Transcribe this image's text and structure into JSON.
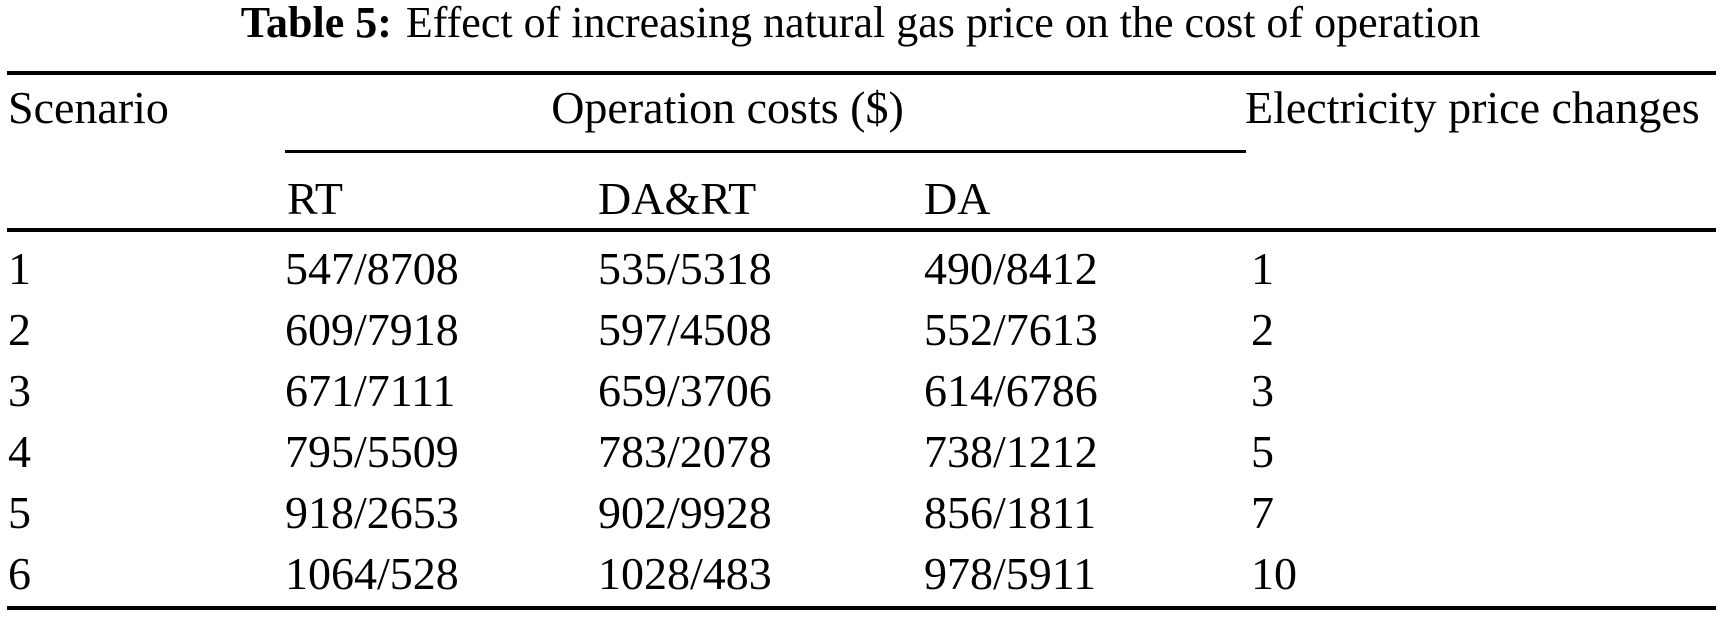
{
  "caption": {
    "label": "Table 5:",
    "text": "Effect of increasing natural gas price on the cost of operation"
  },
  "table": {
    "scenario_header": "Scenario",
    "group_header": "Operation costs ($)",
    "electricity_header": "Electricity price changes",
    "sub_headers": {
      "rt": "RT",
      "dart": "DA&RT",
      "da": "DA"
    },
    "rows": [
      {
        "scenario": "1",
        "rt": "547/8708",
        "dart": "535/5318",
        "da": "490/8412",
        "elec": "1"
      },
      {
        "scenario": "2",
        "rt": "609/7918",
        "dart": "597/4508",
        "da": "552/7613",
        "elec": "2"
      },
      {
        "scenario": "3",
        "rt": "671/7111",
        "dart": "659/3706",
        "da": "614/6786",
        "elec": "3"
      },
      {
        "scenario": "4",
        "rt": "795/5509",
        "dart": "783/2078",
        "da": "738/1212",
        "elec": "5"
      },
      {
        "scenario": "5",
        "rt": "918/2653",
        "dart": "902/9928",
        "da": "856/1811",
        "elec": "7"
      },
      {
        "scenario": "6",
        "rt": "1064/528",
        "dart": "1028/483",
        "da": "978/5911",
        "elec": "10"
      }
    ]
  },
  "chart_data": {
    "type": "table",
    "title": "Table 5: Effect of increasing natural gas price on the cost of operation",
    "columns": [
      "Scenario",
      "Operation costs ($) - RT",
      "Operation costs ($) - DA&RT",
      "Operation costs ($) - DA",
      "Electricity price changes"
    ],
    "rows": [
      [
        "1",
        "547/8708",
        "535/5318",
        "490/8412",
        "1"
      ],
      [
        "2",
        "609/7918",
        "597/4508",
        "552/7613",
        "2"
      ],
      [
        "3",
        "671/7111",
        "659/3706",
        "614/6786",
        "3"
      ],
      [
        "4",
        "795/5509",
        "783/2078",
        "738/1212",
        "5"
      ],
      [
        "5",
        "918/2653",
        "902/9928",
        "856/1811",
        "7"
      ],
      [
        "6",
        "1064/528",
        "1028/483",
        "978/5911",
        "10"
      ]
    ]
  },
  "colors": {
    "background": "#ffffff",
    "text": "#000000",
    "rule": "#000000"
  }
}
